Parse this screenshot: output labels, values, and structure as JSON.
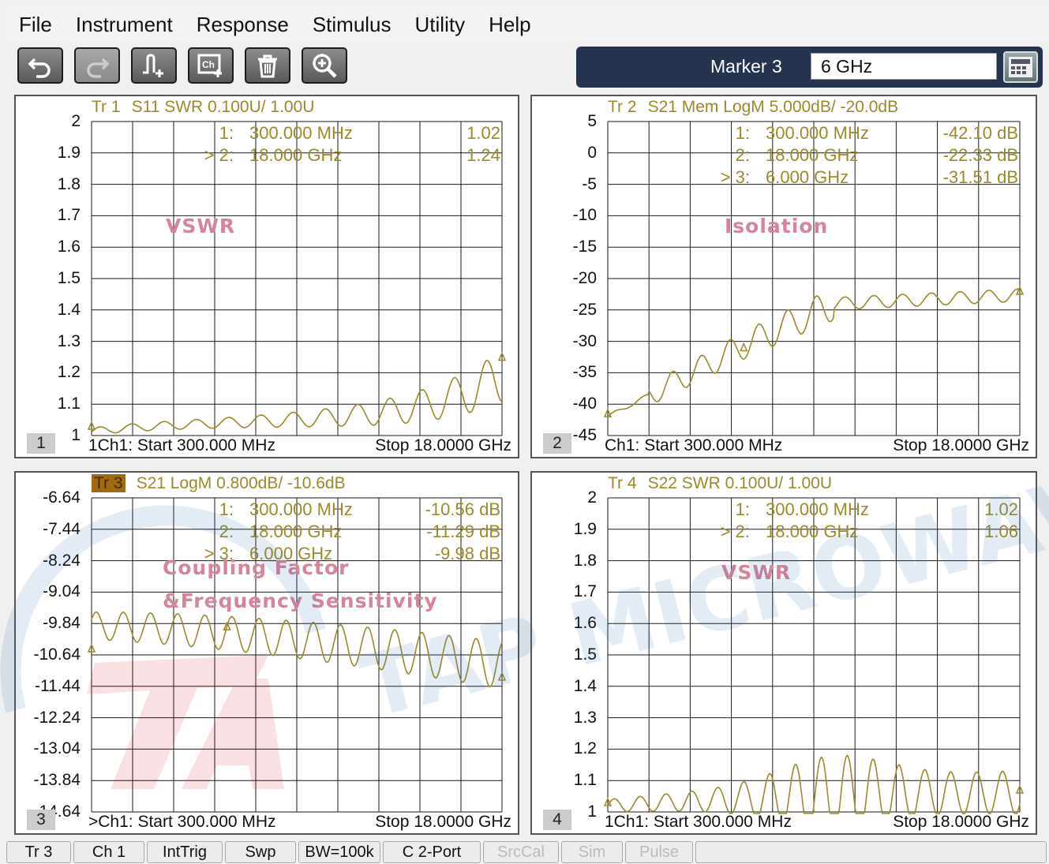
{
  "menu": [
    "File",
    "Instrument",
    "Response",
    "Stimulus",
    "Utility",
    "Help"
  ],
  "toolbar": {
    "buttons": [
      "undo-icon",
      "redo-icon",
      "add-trace-icon",
      "add-channel-icon",
      "delete-icon",
      "zoom-icon"
    ],
    "marker_label": "Marker 3",
    "marker_value": "6 GHz"
  },
  "panes": [
    {
      "num": "1",
      "header_trace": "Tr 1",
      "header_rest": "S11 SWR 0.100U/  1.00U",
      "yticks": [
        "2",
        "1.9",
        "1.8",
        "1.7",
        "1.6",
        "1.5",
        "1.4",
        "1.3",
        "1.2",
        "1.1",
        "1"
      ],
      "markers": [
        {
          "id": "1:",
          "freq": "300.000  MHz",
          "val": "1.02"
        },
        {
          "id": "> 2:",
          "freq": "18.000  GHz",
          "val": "1.24"
        }
      ],
      "label": "VSWR",
      "label2": "",
      "footer_start": "1Ch1:  Start  300.000 MHz",
      "footer_stop": "Stop  18.0000 GHz"
    },
    {
      "num": "2",
      "header_trace": "Tr 2",
      "header_rest": "S21 Mem LogM 5.000dB/  -20.0dB",
      "yticks": [
        "5",
        "0",
        "-5",
        "-10",
        "-15",
        "-20",
        "-25",
        "-30",
        "-35",
        "-40",
        "-45"
      ],
      "markers": [
        {
          "id": "1:",
          "freq": "300.000  MHz",
          "val": "-42.10 dB"
        },
        {
          "id": "2:",
          "freq": "18.000  GHz",
          "val": "-22.33 dB"
        },
        {
          "id": "> 3:",
          "freq": "6.000  GHz",
          "val": "-31.51 dB"
        }
      ],
      "label": "Isolation",
      "label2": "",
      "footer_start": "Ch1:  Start  300.000 MHz",
      "footer_stop": "Stop  18.0000 GHz"
    },
    {
      "num": "3",
      "header_trace": "Tr 3",
      "header_rest": "S21 LogM 0.800dB/  -10.6dB",
      "yticks": [
        "-6.64",
        "-7.44",
        "-8.24",
        "-9.04",
        "-9.84",
        "-10.64",
        "-11.44",
        "-12.24",
        "-13.04",
        "-13.84",
        "-14.64"
      ],
      "markers": [
        {
          "id": "1:",
          "freq": "300.000  MHz",
          "val": "-10.56 dB"
        },
        {
          "id": "2:",
          "freq": "18.000  GHz",
          "val": "-11.29 dB"
        },
        {
          "id": "> 3:",
          "freq": "6.000  GHz",
          "val": "-9.98 dB"
        }
      ],
      "label": "Coupling Factor",
      "label2": "&Frequency Sensitivity",
      "footer_start": ">Ch1:  Start  300.000 MHz",
      "footer_stop": "Stop  18.0000 GHz"
    },
    {
      "num": "4",
      "header_trace": "Tr 4",
      "header_rest": "S22 SWR 0.100U/  1.00U",
      "yticks": [
        "2",
        "1.9",
        "1.8",
        "1.7",
        "1.6",
        "1.5",
        "1.4",
        "1.3",
        "1.2",
        "1.1",
        "1"
      ],
      "markers": [
        {
          "id": "1:",
          "freq": "300.000  MHz",
          "val": "1.02"
        },
        {
          "id": "> 2:",
          "freq": "18.000  GHz",
          "val": "1.06"
        }
      ],
      "label": "VSWR",
      "label2": "",
      "footer_start": "1Ch1:  Start  300.000 MHz",
      "footer_stop": "Stop  18.0000 GHz"
    }
  ],
  "watermark": "TAP MICROWAVE",
  "status": [
    {
      "label": "Tr 3",
      "enabled": true
    },
    {
      "label": "Ch 1",
      "enabled": true
    },
    {
      "label": "IntTrig",
      "enabled": true
    },
    {
      "label": "Swp",
      "enabled": true
    },
    {
      "label": "BW=100k",
      "enabled": true
    },
    {
      "label": "C  2-Port",
      "enabled": true
    },
    {
      "label": "SrcCal",
      "enabled": false
    },
    {
      "label": "Sim",
      "enabled": false
    },
    {
      "label": "Pulse",
      "enabled": false
    }
  ],
  "colors": {
    "trace": "#9b8a2a",
    "grid": "#1a1a1a",
    "watermark_label": "#d5849a",
    "panel": "#24344e"
  }
}
